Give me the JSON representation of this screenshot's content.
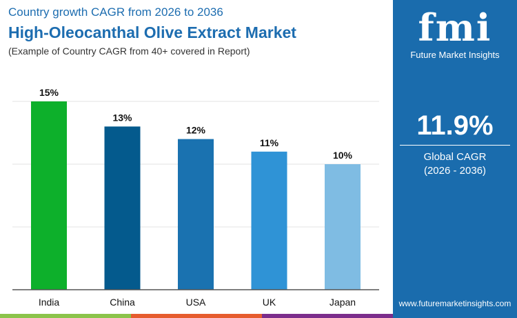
{
  "header": {
    "subtitle": "Country growth CAGR from 2026 to 2036",
    "title": "High-Oleocanthal Olive Extract Market",
    "note": "(Example of Country CAGR from 40+ covered in Report)"
  },
  "panel": {
    "brand": "fmi",
    "brand_name": "Future Market Insights",
    "cagr": "11.9%",
    "cagr_label": "Global CAGR",
    "cagr_period": "(2026 - 2036)",
    "url": "www.futuremarketinsights.com",
    "color": "#1a6cad"
  },
  "chart_data": {
    "type": "bar",
    "categories": [
      "India",
      "China",
      "USA",
      "UK",
      "Japan"
    ],
    "values": [
      15,
      13,
      12,
      11,
      10
    ],
    "data_labels": [
      "15%",
      "13%",
      "12%",
      "11%",
      "10%"
    ],
    "colors": [
      "#0db02b",
      "#045a8d",
      "#1a72b0",
      "#2f93d6",
      "#7fbce3"
    ],
    "ylim": [
      0,
      15
    ],
    "grid": true
  }
}
